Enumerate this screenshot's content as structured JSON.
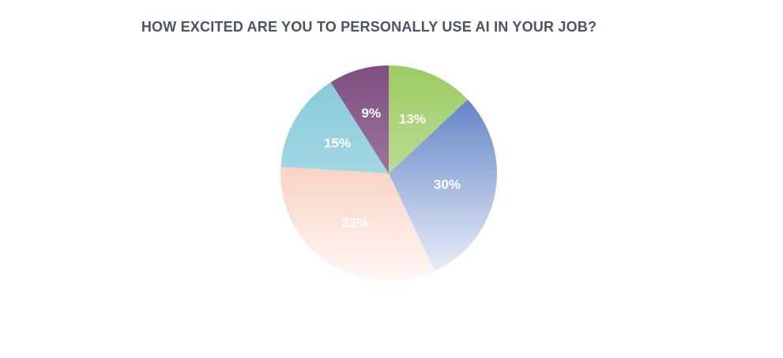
{
  "chart_data": {
    "type": "pie",
    "title": "HOW EXCITED ARE YOU TO PERSONALLY USE AI IN YOUR JOB?",
    "slices": [
      {
        "value": 13,
        "label": "13%",
        "color": "#9ccb62",
        "color_fade": "#dcecc7"
      },
      {
        "value": 30,
        "label": "30%",
        "color": "#4a70bd",
        "color_fade": "#f0f4fb"
      },
      {
        "value": 33,
        "label": "33%",
        "color": "#f0b299",
        "color_fade": "#fff8f5"
      },
      {
        "value": 15,
        "label": "15%",
        "color": "#82c8d8",
        "color_fade": "#c4e6ee"
      },
      {
        "value": 9,
        "label": "9%",
        "color": "#7f4e7f",
        "color_fade": "#b79cb7"
      }
    ]
  }
}
